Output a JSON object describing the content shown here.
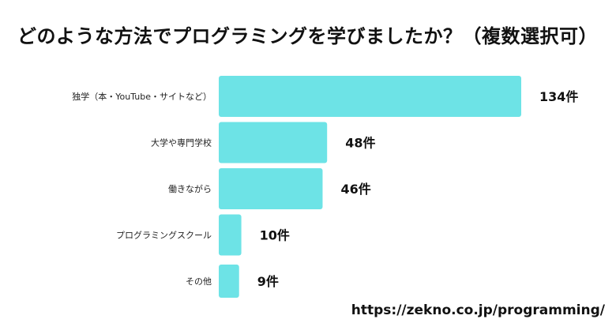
{
  "chart_data": {
    "type": "bar",
    "orientation": "horizontal",
    "title": "どのような方法でプログラミングを学びましたか？（複数選択可）",
    "categories": [
      "独学（本・YouTube・サイトなど）",
      "大学や専門学校",
      "働きながら",
      "プログラミングスクール",
      "その他"
    ],
    "values": [
      134,
      48,
      46,
      10,
      9
    ],
    "value_labels": [
      "134件",
      "48件",
      "46件",
      "10件",
      "9件"
    ],
    "xlim": [
      0,
      134
    ],
    "grid": false,
    "legend": "none",
    "bar_color": "#6de3e6"
  },
  "source_url": "https://zekno.co.jp/programming/"
}
